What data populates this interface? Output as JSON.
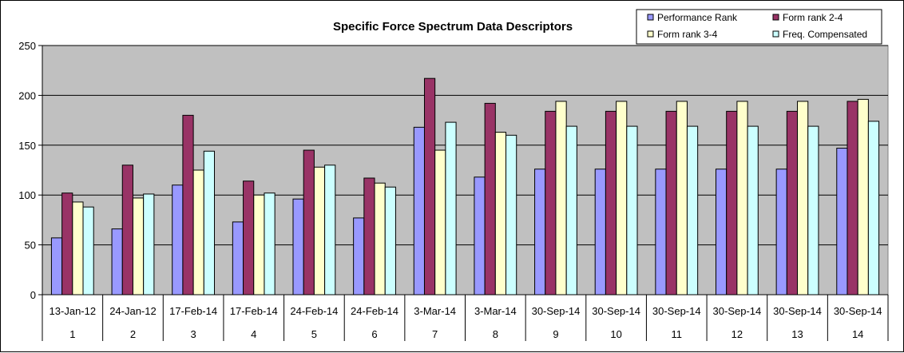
{
  "chart_data": {
    "type": "bar",
    "title": "Specific Force Spectrum Data Descriptors",
    "xlabel": "",
    "ylabel": "",
    "ylim": [
      0,
      250
    ],
    "yticks": [
      0,
      50,
      100,
      150,
      200,
      250
    ],
    "grid": true,
    "legend_position": "top-right",
    "plot_background": "#c0c0c0",
    "categories": [
      "1",
      "2",
      "3",
      "4",
      "5",
      "6",
      "7",
      "8",
      "9",
      "10",
      "11",
      "12",
      "13",
      "14"
    ],
    "category_dates": [
      "13-Jan-12",
      "24-Jan-12",
      "17-Feb-14",
      "17-Feb-14",
      "24-Feb-14",
      "24-Feb-14",
      "3-Mar-14",
      "3-Mar-14",
      "30-Sep-14",
      "30-Sep-14",
      "30-Sep-14",
      "30-Sep-14",
      "30-Sep-14",
      "30-Sep-14"
    ],
    "series": [
      {
        "name": "Performance Rank",
        "color": "#9999ff",
        "values": [
          57,
          66,
          110,
          73,
          96,
          77,
          168,
          118,
          126,
          126,
          126,
          126,
          126,
          147
        ]
      },
      {
        "name": "Form rank 2-4",
        "color": "#993366",
        "values": [
          102,
          130,
          180,
          114,
          145,
          117,
          217,
          192,
          184,
          184,
          184,
          184,
          184,
          194
        ]
      },
      {
        "name": "Form rank 3-4",
        "color": "#ffffcc",
        "values": [
          93,
          97,
          125,
          100,
          128,
          112,
          145,
          163,
          194,
          194,
          194,
          194,
          194,
          196
        ]
      },
      {
        "name": "Freq. Compensated",
        "color": "#ccffff",
        "values": [
          88,
          101,
          144,
          102,
          130,
          108,
          173,
          160,
          169,
          169,
          169,
          169,
          169,
          174
        ]
      }
    ]
  }
}
